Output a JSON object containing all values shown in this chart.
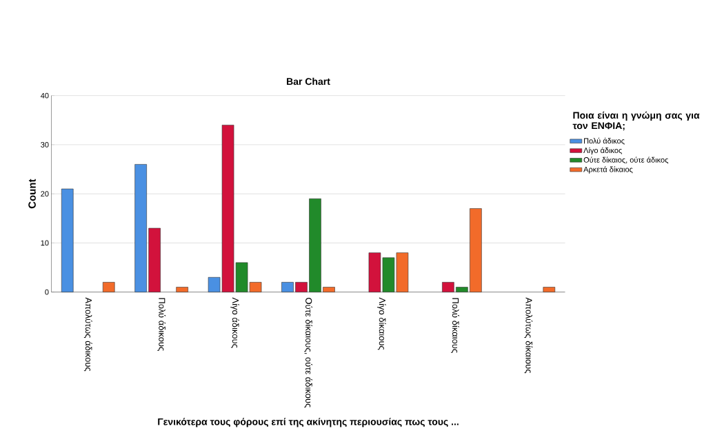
{
  "chart_data": {
    "type": "bar",
    "title": "Bar Chart",
    "xlabel": "Γενικότερα τους φόρους επί της ακίνητης περιουσίας πως τους ...",
    "ylabel": "Count",
    "legend_title": "Ποια είναι η γνώμη σας για τον ΕΝΦΙΑ;",
    "categories": [
      "Απολύτως άδικους",
      "Πολύ άδικους",
      "Λίγο άδικους",
      "Ούτε δίκαιους, ούτε άδικους",
      "Λίγο δίκαιους",
      "Πολύ δίκαιους",
      "Απολύτως δίκαιους"
    ],
    "series": [
      {
        "name": "Πολύ άδικος",
        "color": "#4a90e2",
        "values": [
          21,
          26,
          3,
          2,
          null,
          null,
          null
        ]
      },
      {
        "name": "Λίγο άδικος",
        "color": "#d2123c",
        "values": [
          null,
          13,
          34,
          2,
          8,
          2,
          null
        ]
      },
      {
        "name": "Ούτε δίκαιος, ούτε άδικος",
        "color": "#218a2a",
        "values": [
          null,
          null,
          6,
          19,
          7,
          1,
          null
        ]
      },
      {
        "name": "Αρκετά δίκαιος",
        "color": "#f26b2a",
        "values": [
          2,
          1,
          2,
          1,
          8,
          17,
          1
        ]
      }
    ],
    "ylim": [
      0,
      40
    ],
    "yticks": [
      0,
      10,
      20,
      30,
      40
    ],
    "grid": "y",
    "legend": "right"
  }
}
